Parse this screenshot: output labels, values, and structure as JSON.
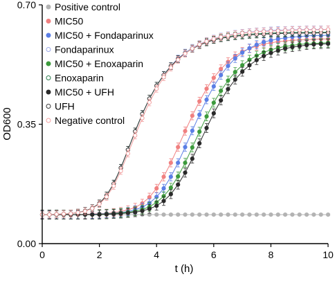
{
  "chart_data": {
    "type": "line",
    "title": "",
    "xlabel": "t (h)",
    "ylabel": "OD600",
    "xlim": [
      0,
      10
    ],
    "ylim": [
      0,
      0.7
    ],
    "x_ticks": [
      0,
      2,
      4,
      6,
      8,
      10
    ],
    "x_tick_labels": [
      "0",
      "2",
      "4",
      "6",
      "8",
      "10"
    ],
    "y_ticks": [
      0,
      0.35,
      0.7
    ],
    "y_tick_labels": [
      "0.00",
      "0.35",
      "0.70"
    ],
    "grid": false,
    "legend_position": "top-left",
    "x": [
      0,
      0.25,
      0.5,
      0.75,
      1,
      1.25,
      1.5,
      1.75,
      2,
      2.25,
      2.5,
      2.75,
      3,
      3.25,
      3.5,
      3.75,
      4,
      4.25,
      4.5,
      4.75,
      5,
      5.25,
      5.5,
      5.75,
      6,
      6.25,
      6.5,
      6.75,
      7,
      7.25,
      7.5,
      7.75,
      8,
      8.25,
      8.5,
      8.75,
      9,
      9.25,
      9.5,
      9.75,
      10
    ],
    "series": [
      {
        "name": "Positive control",
        "color": "#b3b3b3",
        "marker": "filled",
        "y_error": 0.003,
        "values": [
          0.085,
          0.085,
          0.085,
          0.085,
          0.085,
          0.085,
          0.085,
          0.085,
          0.085,
          0.085,
          0.085,
          0.085,
          0.085,
          0.085,
          0.085,
          0.085,
          0.085,
          0.085,
          0.085,
          0.085,
          0.085,
          0.085,
          0.085,
          0.085,
          0.085,
          0.085,
          0.085,
          0.085,
          0.085,
          0.085,
          0.085,
          0.085,
          0.085,
          0.085,
          0.085,
          0.085,
          0.085,
          0.085,
          0.085,
          0.085,
          0.085
        ]
      },
      {
        "name": "MIC50",
        "color": "#f08080",
        "marker": "filled",
        "y_error": 0.012,
        "values": [
          0.085,
          0.085,
          0.085,
          0.085,
          0.085,
          0.085,
          0.086,
          0.087,
          0.088,
          0.089,
          0.091,
          0.094,
          0.099,
          0.106,
          0.118,
          0.136,
          0.162,
          0.196,
          0.237,
          0.283,
          0.33,
          0.375,
          0.417,
          0.454,
          0.486,
          0.512,
          0.533,
          0.55,
          0.563,
          0.572,
          0.579,
          0.585,
          0.589,
          0.592,
          0.594,
          0.596,
          0.597,
          0.598,
          0.599,
          0.6,
          0.6
        ]
      },
      {
        "name": "MIC50 + Fondaparinux",
        "color": "#5b7ee5",
        "marker": "filled",
        "y_error": 0.012,
        "values": [
          0.085,
          0.085,
          0.085,
          0.085,
          0.085,
          0.085,
          0.085,
          0.086,
          0.087,
          0.088,
          0.089,
          0.091,
          0.094,
          0.099,
          0.107,
          0.119,
          0.137,
          0.162,
          0.196,
          0.237,
          0.283,
          0.331,
          0.378,
          0.422,
          0.461,
          0.494,
          0.521,
          0.543,
          0.56,
          0.573,
          0.583,
          0.591,
          0.596,
          0.6,
          0.603,
          0.606,
          0.607,
          0.609,
          0.61,
          0.61,
          0.611
        ]
      },
      {
        "name": "Fondaparinux",
        "color": "#9aa8e8",
        "marker": "open",
        "y_error": 0.01,
        "values": [
          0.085,
          0.085,
          0.086,
          0.087,
          0.088,
          0.091,
          0.096,
          0.104,
          0.118,
          0.141,
          0.176,
          0.222,
          0.275,
          0.329,
          0.38,
          0.425,
          0.463,
          0.495,
          0.521,
          0.543,
          0.56,
          0.574,
          0.585,
          0.594,
          0.601,
          0.607,
          0.611,
          0.615,
          0.618,
          0.62,
          0.622,
          0.623,
          0.625,
          0.626,
          0.626,
          0.627,
          0.627,
          0.628,
          0.628,
          0.628,
          0.628
        ]
      },
      {
        "name": "MIC50 + Enoxaparin",
        "color": "#3c9a3c",
        "marker": "filled",
        "y_error": 0.013,
        "values": [
          0.085,
          0.085,
          0.085,
          0.085,
          0.085,
          0.085,
          0.085,
          0.085,
          0.086,
          0.087,
          0.088,
          0.09,
          0.092,
          0.095,
          0.1,
          0.108,
          0.121,
          0.139,
          0.164,
          0.197,
          0.237,
          0.282,
          0.328,
          0.373,
          0.413,
          0.448,
          0.478,
          0.503,
          0.523,
          0.539,
          0.551,
          0.561,
          0.568,
          0.574,
          0.578,
          0.581,
          0.584,
          0.586,
          0.587,
          0.588,
          0.589
        ]
      },
      {
        "name": "Enoxaparin",
        "color": "#2e7d4f",
        "marker": "open",
        "y_error": 0.01,
        "values": [
          0.085,
          0.085,
          0.086,
          0.087,
          0.088,
          0.091,
          0.096,
          0.104,
          0.118,
          0.141,
          0.176,
          0.222,
          0.275,
          0.329,
          0.38,
          0.425,
          0.463,
          0.494,
          0.52,
          0.541,
          0.558,
          0.572,
          0.583,
          0.591,
          0.598,
          0.603,
          0.607,
          0.61,
          0.612,
          0.614,
          0.615,
          0.616,
          0.617,
          0.618,
          0.618,
          0.619,
          0.619,
          0.619,
          0.619,
          0.619,
          0.62
        ]
      },
      {
        "name": "MIC50 + UFH",
        "color": "#2a2a2a",
        "marker": "filled",
        "y_error": 0.013,
        "values": [
          0.085,
          0.085,
          0.085,
          0.085,
          0.085,
          0.085,
          0.085,
          0.085,
          0.085,
          0.086,
          0.087,
          0.088,
          0.09,
          0.092,
          0.096,
          0.102,
          0.111,
          0.125,
          0.145,
          0.173,
          0.208,
          0.249,
          0.294,
          0.339,
          0.382,
          0.42,
          0.453,
          0.481,
          0.504,
          0.523,
          0.538,
          0.55,
          0.559,
          0.566,
          0.572,
          0.576,
          0.579,
          0.582,
          0.584,
          0.585,
          0.586
        ]
      },
      {
        "name": "UFH",
        "color": "#3a3a3a",
        "marker": "open",
        "y_error": 0.01,
        "values": [
          0.085,
          0.085,
          0.086,
          0.087,
          0.088,
          0.091,
          0.096,
          0.104,
          0.118,
          0.141,
          0.176,
          0.222,
          0.275,
          0.329,
          0.38,
          0.425,
          0.463,
          0.494,
          0.52,
          0.541,
          0.558,
          0.571,
          0.582,
          0.59,
          0.597,
          0.602,
          0.605,
          0.608,
          0.61,
          0.612,
          0.613,
          0.614,
          0.615,
          0.616,
          0.616,
          0.617,
          0.617,
          0.617,
          0.617,
          0.618,
          0.618
        ]
      },
      {
        "name": "Negative control",
        "color": "#f2a0a0",
        "marker": "open",
        "y_error": 0.01,
        "values": [
          0.085,
          0.085,
          0.086,
          0.087,
          0.088,
          0.091,
          0.095,
          0.103,
          0.116,
          0.137,
          0.169,
          0.213,
          0.264,
          0.317,
          0.368,
          0.414,
          0.454,
          0.488,
          0.516,
          0.539,
          0.557,
          0.572,
          0.584,
          0.593,
          0.6,
          0.606,
          0.61,
          0.614,
          0.617,
          0.619,
          0.621,
          0.622,
          0.623,
          0.624,
          0.625,
          0.626,
          0.626,
          0.627,
          0.627,
          0.627,
          0.628
        ]
      }
    ]
  }
}
